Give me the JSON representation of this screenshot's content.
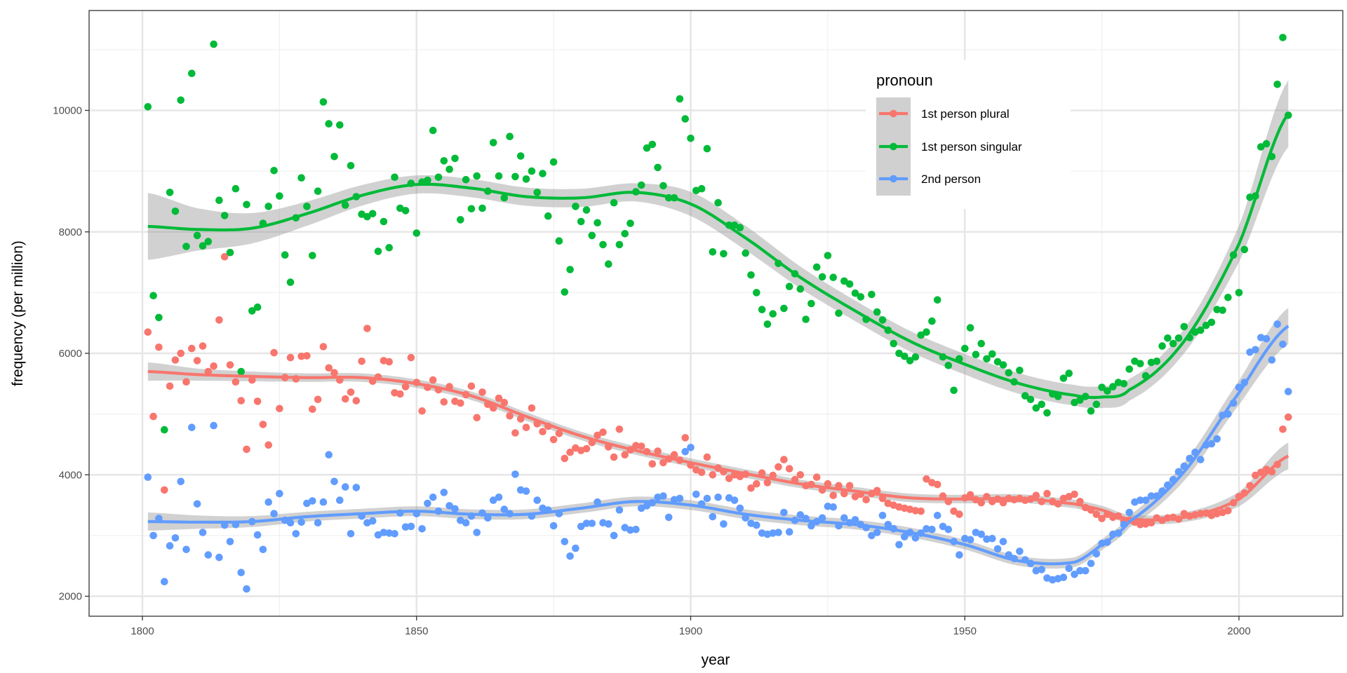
{
  "chart_data": {
    "type": "scatter",
    "title": "",
    "xlabel": "year",
    "ylabel": "frequency (per million)",
    "xlim": [
      1790,
      2020
    ],
    "ylim": [
      1500,
      11300
    ],
    "x_ticks": [
      1800,
      1850,
      1900,
      1950,
      2000
    ],
    "y_ticks": [
      2000,
      4000,
      6000,
      8000,
      10000
    ],
    "grid": true,
    "legend": {
      "title": "pronoun",
      "placement": "top-right-inside"
    },
    "x_start": 1801,
    "series": [
      {
        "name": "1st person plural",
        "color": "#F8766D",
        "values": [
          6350,
          4960,
          6100,
          3750,
          5460,
          5890,
          6000,
          5530,
          6080,
          5880,
          6120,
          5700,
          5790,
          6550,
          7590,
          5810,
          5530,
          5220,
          4420,
          5560,
          5210,
          4830,
          4490,
          6010,
          5090,
          5600,
          5930,
          5580,
          5950,
          5960,
          5080,
          5240,
          6110,
          5760,
          5680,
          5560,
          5250,
          5360,
          5220,
          5870,
          6410,
          5540,
          5610,
          5880,
          5860,
          5350,
          5330,
          5450,
          5930,
          5520,
          5050,
          5440,
          5560,
          5400,
          5200,
          5450,
          5210,
          5180,
          5320,
          5460,
          4940,
          5360,
          5160,
          5100,
          5260,
          5190,
          4970,
          4690,
          4920,
          4780,
          5100,
          4840,
          4710,
          4800,
          4580,
          4680,
          4270,
          4370,
          4440,
          4400,
          4430,
          4530,
          4650,
          4700,
          4460,
          4290,
          4750,
          4330,
          4410,
          4480,
          4470,
          4380,
          4180,
          4390,
          4200,
          4260,
          4330,
          4240,
          4610,
          4160,
          4080,
          4040,
          4290,
          4000,
          4110,
          4050,
          3940,
          4000,
          3970,
          4010,
          3780,
          3850,
          4030,
          3870,
          3990,
          4130,
          4250,
          4100,
          3920,
          4000,
          3820,
          3840,
          3960,
          3750,
          3850,
          3660,
          3820,
          3690,
          3820,
          3640,
          3680,
          3590,
          3690,
          3740,
          3610,
          3530,
          3500,
          3470,
          3450,
          3430,
          3410,
          3400,
          3930,
          3870,
          3840,
          3650,
          3560,
          3400,
          3350,
          3620,
          3670,
          3590,
          3540,
          3640,
          3560,
          3600,
          3540,
          3610,
          3590,
          3610,
          3580,
          3600,
          3660,
          3560,
          3690,
          3560,
          3520,
          3610,
          3640,
          3680,
          3560,
          3460,
          3420,
          3350,
          3280,
          3350,
          3300,
          3320,
          3240,
          3250,
          3220,
          3180,
          3190,
          3210,
          3290,
          3250,
          3290,
          3300,
          3270,
          3360,
          3320,
          3340,
          3360,
          3370,
          3330,
          3360,
          3380,
          3410,
          3540,
          3640,
          3700,
          3820,
          3990,
          4040,
          4090,
          4050,
          4170,
          4750,
          4950
        ],
        "smooth": {
          "x": [
            1801,
            1810,
            1820,
            1830,
            1840,
            1850,
            1860,
            1870,
            1880,
            1890,
            1900,
            1910,
            1920,
            1930,
            1940,
            1950,
            1960,
            1970,
            1975,
            1980,
            1990,
            2000,
            2009
          ],
          "y": [
            5700,
            5650,
            5620,
            5600,
            5600,
            5500,
            5300,
            4960,
            4640,
            4400,
            4200,
            4020,
            3850,
            3730,
            3620,
            3600,
            3610,
            3520,
            3420,
            3270,
            3300,
            3600,
            4310
          ],
          "se": [
            150,
            100,
            80,
            70,
            70,
            70,
            70,
            70,
            70,
            70,
            70,
            70,
            70,
            70,
            70,
            70,
            70,
            70,
            70,
            70,
            80,
            120,
            220
          ]
        }
      },
      {
        "name": "1st person singular",
        "color": "#00BA38",
        "values": [
          10060,
          6950,
          6590,
          4740,
          8650,
          8340,
          10170,
          7760,
          10610,
          7940,
          7770,
          7840,
          11090,
          8520,
          8270,
          7660,
          8710,
          5700,
          8450,
          6700,
          6760,
          8140,
          8420,
          9010,
          8590,
          7620,
          7170,
          8230,
          8890,
          8420,
          7610,
          8670,
          10140,
          9780,
          9240,
          9760,
          8440,
          9090,
          8580,
          8290,
          8250,
          8300,
          7680,
          8170,
          7740,
          8900,
          8390,
          8350,
          8800,
          7980,
          8820,
          8850,
          9670,
          8900,
          9170,
          9030,
          9210,
          8200,
          8860,
          8380,
          8920,
          8390,
          8670,
          9470,
          8920,
          8560,
          9570,
          8910,
          9250,
          8870,
          9000,
          8650,
          8960,
          8260,
          9150,
          7850,
          7010,
          7380,
          8420,
          8170,
          8360,
          7940,
          8150,
          7790,
          7470,
          8480,
          7790,
          7970,
          8140,
          8660,
          8770,
          9380,
          9440,
          9060,
          8760,
          8560,
          8560,
          10190,
          9860,
          9540,
          8680,
          8710,
          9370,
          7670,
          8480,
          7640,
          8110,
          8110,
          8070,
          7650,
          7290,
          7000,
          6720,
          6480,
          6650,
          7480,
          6740,
          7100,
          7310,
          7060,
          6560,
          6820,
          7420,
          7260,
          7610,
          7250,
          6660,
          7190,
          7140,
          6990,
          6930,
          6560,
          6970,
          6680,
          6550,
          6380,
          6160,
          6000,
          5950,
          5880,
          5940,
          6300,
          6350,
          6530,
          6880,
          5940,
          5800,
          5390,
          5910,
          6080,
          6420,
          5980,
          6160,
          5910,
          5990,
          5860,
          5810,
          5680,
          5530,
          5720,
          5300,
          5240,
          5100,
          5160,
          5020,
          5330,
          5290,
          5590,
          5670,
          5190,
          5230,
          5290,
          5050,
          5160,
          5440,
          5380,
          5450,
          5520,
          5500,
          5740,
          5870,
          5830,
          5630,
          5850,
          5870,
          6120,
          6250,
          6160,
          6250,
          6440,
          6260,
          6350,
          6380,
          6460,
          6510,
          6720,
          6710,
          6920,
          7620,
          7000,
          7710,
          8570,
          8590,
          9400,
          9450,
          9240,
          10430,
          11200,
          9920
        ],
        "smooth": {
          "x": [
            1801,
            1810,
            1820,
            1830,
            1840,
            1850,
            1860,
            1870,
            1880,
            1890,
            1900,
            1910,
            1920,
            1930,
            1940,
            1950,
            1960,
            1970,
            1975,
            1980,
            1990,
            2000,
            2009
          ],
          "y": [
            8090,
            8040,
            8060,
            8300,
            8600,
            8780,
            8720,
            8580,
            8560,
            8650,
            8460,
            7900,
            7250,
            6700,
            6200,
            5820,
            5500,
            5310,
            5280,
            5400,
            6200,
            7800,
            9950
          ],
          "se": [
            550,
            350,
            250,
            200,
            170,
            150,
            150,
            150,
            150,
            150,
            200,
            200,
            180,
            170,
            170,
            170,
            170,
            170,
            180,
            180,
            200,
            300,
            550
          ]
        }
      },
      {
        "name": "2nd person",
        "color": "#619CFF",
        "values": [
          3960,
          3000,
          3280,
          2240,
          2830,
          2960,
          3890,
          2770,
          4780,
          3520,
          3050,
          2680,
          4810,
          2640,
          3170,
          2900,
          3180,
          2390,
          2120,
          3230,
          3010,
          2770,
          3550,
          3360,
          3690,
          3250,
          3210,
          3030,
          3220,
          3530,
          3570,
          3210,
          3550,
          4330,
          3890,
          3580,
          3800,
          3030,
          3790,
          3320,
          3210,
          3240,
          3010,
          3050,
          3040,
          3030,
          3370,
          3140,
          3150,
          3360,
          3110,
          3530,
          3630,
          3400,
          3710,
          3490,
          3440,
          3250,
          3210,
          3320,
          3050,
          3370,
          3290,
          3580,
          3630,
          3430,
          3360,
          4010,
          3750,
          3730,
          3320,
          3580,
          3450,
          3420,
          3160,
          3360,
          2900,
          2660,
          2790,
          3150,
          3200,
          3200,
          3550,
          3210,
          3190,
          3000,
          3420,
          3130,
          3090,
          3100,
          3450,
          3490,
          3540,
          3630,
          3650,
          3300,
          3590,
          3610,
          4380,
          4450,
          3680,
          3520,
          3610,
          3310,
          3630,
          3190,
          3620,
          3580,
          3450,
          3290,
          3200,
          3170,
          3040,
          3020,
          3040,
          3050,
          3380,
          3060,
          3250,
          3340,
          3280,
          3160,
          3230,
          3290,
          3480,
          3470,
          3160,
          3290,
          3210,
          3260,
          3180,
          3130,
          3000,
          3050,
          3330,
          3180,
          3110,
          2850,
          2980,
          3050,
          2960,
          3040,
          3110,
          3100,
          3330,
          3150,
          3100,
          2900,
          2680,
          2950,
          2930,
          3050,
          3020,
          2940,
          2950,
          2780,
          2900,
          2680,
          2620,
          2740,
          2600,
          2540,
          2420,
          2440,
          2300,
          2270,
          2290,
          2310,
          2460,
          2360,
          2420,
          2420,
          2540,
          2700,
          2870,
          2890,
          3020,
          3040,
          3180,
          3380,
          3550,
          3580,
          3580,
          3650,
          3650,
          3730,
          3830,
          3920,
          4050,
          4140,
          4270,
          4370,
          4250,
          4490,
          4510,
          4590,
          4980,
          5000,
          5180,
          5440,
          5520,
          6020,
          6060,
          6260,
          6240,
          5890,
          6480,
          6150,
          5370
        ],
        "smooth": {
          "x": [
            1801,
            1810,
            1820,
            1830,
            1840,
            1850,
            1860,
            1870,
            1880,
            1890,
            1900,
            1910,
            1920,
            1930,
            1940,
            1950,
            1960,
            1970,
            1975,
            1980,
            1990,
            2000,
            2009
          ],
          "y": [
            3230,
            3220,
            3230,
            3310,
            3360,
            3400,
            3350,
            3350,
            3450,
            3560,
            3500,
            3350,
            3250,
            3180,
            3050,
            2850,
            2580,
            2560,
            2850,
            3230,
            4050,
            5350,
            6450
          ],
          "se": [
            150,
            110,
            90,
            80,
            80,
            80,
            80,
            80,
            80,
            80,
            80,
            80,
            80,
            80,
            80,
            80,
            80,
            80,
            90,
            100,
            150,
            200,
            300
          ]
        }
      }
    ]
  }
}
